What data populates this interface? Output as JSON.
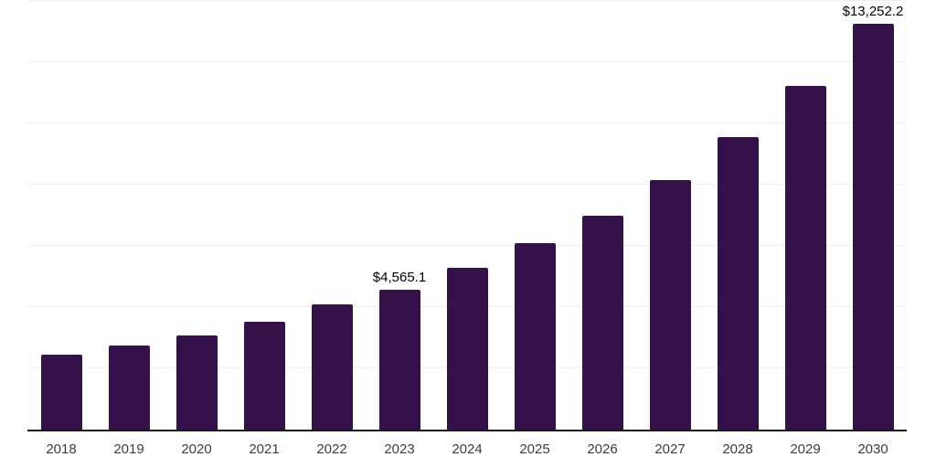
{
  "chart_data": {
    "type": "bar",
    "title": "",
    "xlabel": "",
    "ylabel": "",
    "categories": [
      "2018",
      "2019",
      "2020",
      "2021",
      "2022",
      "2023",
      "2024",
      "2025",
      "2026",
      "2027",
      "2028",
      "2029",
      "2030"
    ],
    "values": [
      2450,
      2745,
      3065,
      3515,
      4080,
      4565.1,
      5275,
      6105,
      6990,
      8145,
      9560,
      11220,
      13252.2
    ],
    "value_labels": [
      "",
      "",
      "",
      "",
      "",
      "$4,565.1",
      "",
      "",
      "",
      "",
      "",
      "",
      "$13,252.2"
    ],
    "ylim": [
      0,
      14040
    ],
    "gridline_step": 2000,
    "grid": true,
    "legend": false,
    "colors": {
      "bar": "#341148",
      "axis": "#1a1a1a",
      "gridline": "#efefef",
      "value_label": "#000000",
      "tick_label": "#3c3c3c",
      "background": "#ffffff"
    }
  }
}
